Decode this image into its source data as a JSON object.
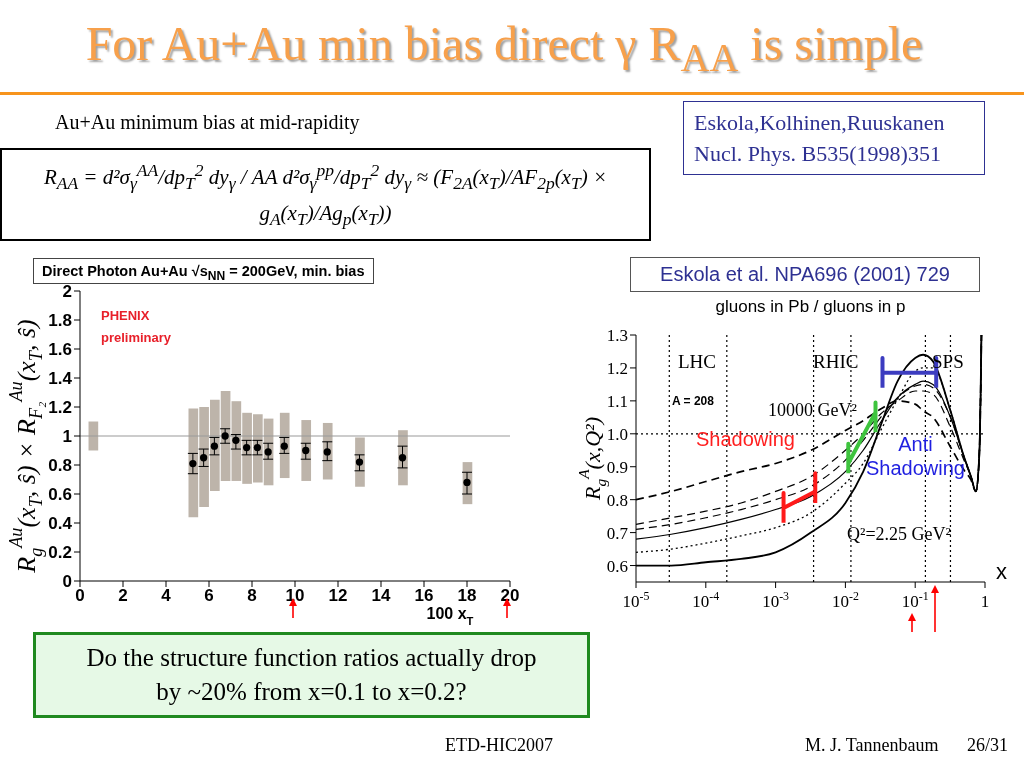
{
  "chart_data": [
    {
      "type": "other",
      "title": "For Au+Au min bias direct γ R$_{AA}$ is simple",
      "annotations": [
        "Au+Au minimum bias at mid-rapidity",
        "R$_{AA}$ = d²σ$_{γ}$$^{AA}$/dp$_{T}$$^{2}$ dy$_{γ}$ / AA d²σ$_{γ}$$^{pp}$/dp$_{T}$$^{2}$ dy$_{γ}$ ≈ (F$_{2A}$(x$_{T}$)/AF$_{2p}$(x$_{T}$) × g$_{A}$(x$_{T}$)/Ag$_{p}$(x$_{T}$))",
        "Eskola,Kolhinen,Ruuskanen Nucl. Phys. B535(1998)351",
        "Do the structure function ratios actually drop by ~20% from x=0.1 to x=0.2?",
        "ETD-HIC2007",
        "M. J. Tannenbaum",
        "26/31"
      ]
    },
    {
      "type": "scatter",
      "title": "Direct Photon Au+Au √s$_{NN}$ = 200GeV, min. bias",
      "xlabel": "100 x$_{T}$",
      "ylabel": "R$_{g}$$^{Au}$(x$_{T}$, ŝ) × R$_{F₂}$$^{Au}$(x$_{T}$, ŝ)",
      "annotations": [
        "PHENIX",
        "preliminary"
      ],
      "xlim": [
        0,
        20
      ],
      "ylim": [
        0,
        2
      ],
      "xticks": [
        0,
        2,
        4,
        6,
        8,
        10,
        12,
        14,
        16,
        18,
        20
      ],
      "yticks": [
        0,
        0.2,
        0.4,
        0.6,
        0.8,
        1,
        1.2,
        1.4,
        1.6,
        1.8,
        2
      ],
      "marker": "circle",
      "ref_lines": [
        {
          "axis": "y",
          "value": 1,
          "color": "#9a9a9a"
        }
      ],
      "series": [
        {
          "type": "bar",
          "color": "#bdb4aa",
          "x": [
            0.6,
            5.25,
            5.75,
            6.25,
            6.75,
            7.25,
            7.75,
            8.25,
            8.75,
            9.5,
            10.5,
            11.5,
            13,
            15,
            18
          ],
          "base": [
            0.9,
            0.44,
            0.51,
            0.62,
            0.69,
            0.69,
            0.67,
            0.68,
            0.66,
            0.71,
            0.69,
            0.7,
            0.65,
            0.66,
            0.53
          ],
          "values": [
            0.2,
            0.75,
            0.69,
            0.63,
            0.62,
            0.55,
            0.49,
            0.47,
            0.46,
            0.45,
            0.42,
            0.39,
            0.34,
            0.38,
            0.29
          ]
        },
        {
          "type": "scatter",
          "color": "#000000",
          "x": [
            5.25,
            5.75,
            6.25,
            6.75,
            7.25,
            7.75,
            8.25,
            8.75,
            9.5,
            10.5,
            11.5,
            13,
            15,
            18
          ],
          "values": [
            0.81,
            0.85,
            0.93,
            1.0,
            0.97,
            0.92,
            0.92,
            0.89,
            0.93,
            0.9,
            0.89,
            0.82,
            0.85,
            0.68
          ],
          "errors": [
            [
              0.74,
              0.88
            ],
            [
              0.79,
              0.91
            ],
            [
              0.87,
              0.99
            ],
            [
              0.95,
              1.05
            ],
            [
              0.91,
              1.01
            ],
            [
              0.87,
              0.97
            ],
            [
              0.87,
              0.97
            ],
            [
              0.84,
              0.95
            ],
            [
              0.88,
              0.99
            ],
            [
              0.84,
              0.95
            ],
            [
              0.83,
              0.96
            ],
            [
              0.76,
              0.87
            ],
            [
              0.78,
              0.93
            ],
            [
              0.6,
              0.75
            ]
          ]
        }
      ]
    },
    {
      "type": "line",
      "title": "gluons in Pb / gluons in p",
      "xlabel": "x",
      "ylabel": "R$_{g}$$^{A}$(x,Q²)",
      "annotations": [
        "Eskola et al. NPA696 (2001) 729",
        "LHC",
        "RHIC",
        "SPS",
        "A = 208",
        "10000 GeV²",
        "Shadowing",
        "Anti Shadowing",
        "Q²=2.25 GeV²"
      ],
      "log": "x",
      "xlim": [
        1e-05,
        1
      ],
      "ylim": [
        0.55,
        1.3
      ],
      "xticks": [
        {
          "value": 1e-05,
          "label": "10$^{-5}$"
        },
        {
          "value": 0.0001,
          "label": "10$^{-4}$"
        },
        {
          "value": 0.001,
          "label": "10$^{-3}$"
        },
        {
          "value": 0.01,
          "label": "10$^{-2}$"
        },
        {
          "value": 0.1,
          "label": "10$^{-1}$"
        },
        1
      ],
      "yticks": [
        0.6,
        0.7,
        0.8,
        0.9,
        {
          "value": 1,
          "label": "1.0"
        },
        1.1,
        1.2,
        1.3
      ],
      "ref_lines": [
        {
          "axis": "y",
          "value": 1,
          "line_style": "dotted",
          "color": "#000000"
        },
        {
          "axis": "x",
          "value": 3e-05,
          "line_style": "dotted",
          "color": "#000000"
        },
        {
          "axis": "x",
          "value": 0.0002,
          "line_style": "dotted",
          "color": "#000000"
        },
        {
          "axis": "x",
          "value": 0.0035,
          "line_style": "dotted",
          "color": "#000000"
        },
        {
          "axis": "x",
          "value": 0.012,
          "line_style": "dotted",
          "color": "#000000"
        },
        {
          "axis": "x",
          "value": 0.14,
          "line_style": "dotted",
          "color": "#000000"
        },
        {
          "axis": "x",
          "value": 0.32,
          "line_style": "dotted",
          "color": "#000000"
        }
      ],
      "x": [
        1e-05,
        3.2e-05,
        0.0001,
        0.00032,
        0.001,
        0.0032,
        0.01,
        0.018,
        0.032,
        0.056,
        0.1,
        0.13,
        0.18,
        0.32,
        0.5,
        0.63,
        0.74,
        0.83,
        0.89
      ],
      "series": [
        {
          "color": "#000000",
          "line_style": "dashed",
          "values": [
            0.8,
            0.825,
            0.855,
            0.885,
            0.91,
            0.95,
            1.01,
            1.04,
            1.075,
            1.1,
            1.09,
            1.07,
            1.05,
            0.96,
            0.89,
            0.86,
            0.825,
            0.94,
            1.3
          ]
        },
        {
          "color": "#000000",
          "line_style": "dashed",
          "values": [
            0.725,
            0.745,
            0.765,
            0.79,
            0.825,
            0.87,
            0.95,
            1.0,
            1.06,
            1.1,
            1.13,
            1.13,
            1.12,
            1.02,
            0.92,
            0.87,
            0.825,
            0.94,
            1.3
          ]
        },
        {
          "color": "#000000",
          "line_style": "dashed",
          "values": [
            0.71,
            0.725,
            0.745,
            0.77,
            0.8,
            0.84,
            0.92,
            0.98,
            1.05,
            1.11,
            1.145,
            1.15,
            1.14,
            1.05,
            0.93,
            0.87,
            0.825,
            0.94,
            1.3
          ]
        },
        {
          "color": "#000000",
          "line_style": "solid",
          "values": [
            0.68,
            0.695,
            0.715,
            0.74,
            0.77,
            0.81,
            0.885,
            0.95,
            1.035,
            1.11,
            1.15,
            1.16,
            1.15,
            1.05,
            0.93,
            0.87,
            0.825,
            0.94,
            1.3
          ]
        },
        {
          "color": "#000000",
          "line_style": "dotted",
          "values": [
            0.64,
            0.65,
            0.668,
            0.69,
            0.715,
            0.76,
            0.85,
            0.91,
            1.01,
            1.105,
            1.19,
            1.2,
            1.2,
            1.07,
            0.93,
            0.87,
            0.825,
            0.94,
            1.3
          ]
        },
        {
          "color": "#000000",
          "line_style": "solid",
          "values": [
            0.6,
            0.6,
            0.61,
            0.62,
            0.64,
            0.7,
            0.79,
            0.885,
            1.025,
            1.16,
            1.23,
            1.24,
            1.22,
            1.07,
            0.93,
            0.87,
            0.825,
            0.94,
            1.3
          ]
        },
        {
          "color": "#ff1a1a",
          "line_style": "solid",
          "x": [
            0.0013,
            0.0013,
            0.0013,
            0.0037,
            0.0037,
            0.0037
          ],
          "values": [
            0.73,
            0.82,
            0.775,
            0.825,
            0.88,
            0.79
          ]
        },
        {
          "color": "#3ec43e",
          "line_style": "solid",
          "x": [
            0.011,
            0.011,
            0.011,
            0.027,
            0.027,
            0.027
          ],
          "values": [
            0.88,
            0.97,
            0.91,
            1.065,
            1.095,
            1.005
          ]
        },
        {
          "color": "#3c3cc0",
          "line_style": "solid",
          "x": [
            0.034,
            0.034,
            0.034,
            0.2,
            0.2,
            0.2
          ],
          "values": [
            1.14,
            1.23,
            1.185,
            1.185,
            1.23,
            1.14
          ]
        }
      ]
    }
  ]
}
